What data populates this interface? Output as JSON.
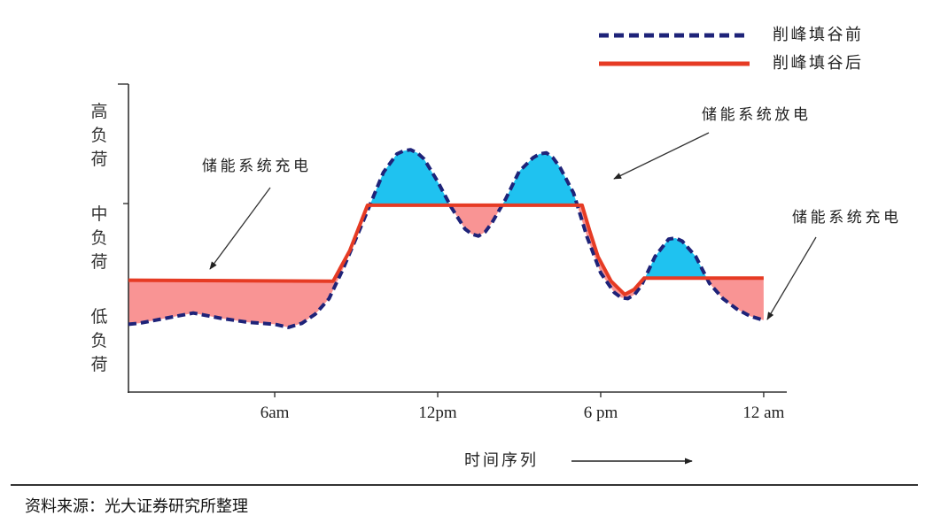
{
  "source": "资料来源：光大证券研究所整理",
  "chart_data": {
    "type": "line",
    "xlabel": "时间序列",
    "xlim": [
      "00:37",
      "24:51"
    ],
    "xticks": [
      {
        "value": "06:00",
        "label": "6am"
      },
      {
        "value": "12:00",
        "label": "12pm"
      },
      {
        "value": "18:00",
        "label": "6 pm"
      },
      {
        "value": "24:00",
        "label": "12 am"
      }
    ],
    "y_categories": [
      "低负荷",
      "中负荷",
      "高负荷"
    ],
    "ylim": [
      0.5,
      3.5
    ],
    "grid": false,
    "legend_position": "top-right",
    "fill_colors": {
      "charge": "#f99494",
      "discharge": "#1fc2f0"
    },
    "annotations": [
      {
        "text": "储能系统充电"
      },
      {
        "text": "储能系统放电"
      },
      {
        "text": "储能系统充电"
      }
    ],
    "series": [
      {
        "name": "削峰填谷前",
        "color": "#1e2379",
        "dashed": true,
        "points": [
          [
            "00:37",
            1.16
          ],
          [
            "01:00",
            1.17
          ],
          [
            "02:00",
            1.22
          ],
          [
            "03:00",
            1.27
          ],
          [
            "04:00",
            1.22
          ],
          [
            "05:00",
            1.18
          ],
          [
            "06:00",
            1.16
          ],
          [
            "06:30",
            1.13
          ],
          [
            "07:00",
            1.17
          ],
          [
            "07:30",
            1.26
          ],
          [
            "08:00",
            1.41
          ],
          [
            "08:30",
            1.69
          ],
          [
            "09:00",
            2.0
          ],
          [
            "09:30",
            2.32
          ],
          [
            "10:00",
            2.64
          ],
          [
            "10:30",
            2.82
          ],
          [
            "10:45",
            2.85
          ],
          [
            "11:00",
            2.86
          ],
          [
            "11:15",
            2.83
          ],
          [
            "11:30",
            2.77
          ],
          [
            "12:00",
            2.55
          ],
          [
            "12:30",
            2.3
          ],
          [
            "13:00",
            2.09
          ],
          [
            "13:15",
            2.04
          ],
          [
            "13:30",
            2.02
          ],
          [
            "13:45",
            2.06
          ],
          [
            "14:00",
            2.15
          ],
          [
            "14:30",
            2.38
          ],
          [
            "15:00",
            2.65
          ],
          [
            "15:30",
            2.78
          ],
          [
            "15:45",
            2.82
          ],
          [
            "16:00",
            2.83
          ],
          [
            "16:15",
            2.78
          ],
          [
            "16:30",
            2.69
          ],
          [
            "17:00",
            2.44
          ],
          [
            "17:30",
            2.01
          ],
          [
            "18:00",
            1.66
          ],
          [
            "18:30",
            1.47
          ],
          [
            "18:45",
            1.42
          ],
          [
            "19:00",
            1.41
          ],
          [
            "19:15",
            1.45
          ],
          [
            "19:30",
            1.54
          ],
          [
            "20:00",
            1.82
          ],
          [
            "20:30",
            1.99
          ],
          [
            "20:45",
            2.0
          ],
          [
            "21:00",
            1.97
          ],
          [
            "21:30",
            1.82
          ],
          [
            "22:00",
            1.56
          ],
          [
            "22:30",
            1.41
          ],
          [
            "23:00",
            1.31
          ],
          [
            "23:30",
            1.24
          ],
          [
            "24:00",
            1.2
          ]
        ]
      },
      {
        "name": "削峰填谷后",
        "color": "#e63b24",
        "dashed": false,
        "points": [
          [
            "00:37",
            1.59
          ],
          [
            "08:09",
            1.58
          ],
          [
            "08:46",
            1.88
          ],
          [
            "09:25",
            2.32
          ],
          [
            "17:19",
            2.32
          ],
          [
            "17:35",
            2.08
          ],
          [
            "17:54",
            1.82
          ],
          [
            "18:23",
            1.58
          ],
          [
            "18:53",
            1.45
          ],
          [
            "19:14",
            1.5
          ],
          [
            "19:36",
            1.61
          ],
          [
            "24:00",
            1.61
          ]
        ]
      }
    ]
  }
}
